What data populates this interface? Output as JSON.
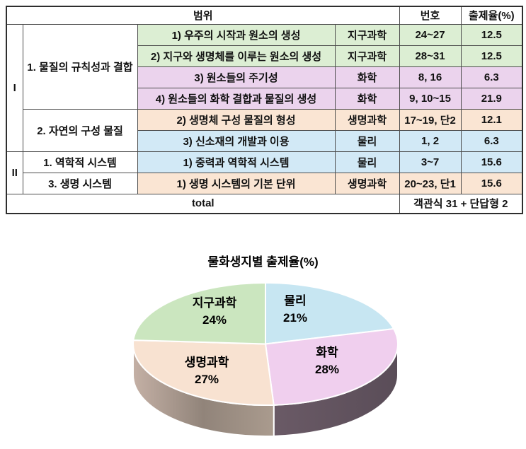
{
  "table": {
    "header": {
      "scope": "범위",
      "number": "번호",
      "rate": "출제율(%)"
    },
    "units": [
      {
        "label": "I"
      },
      {
        "label": "II"
      }
    ],
    "groups": [
      {
        "label": "1. 물질의 규칙성과 결합"
      },
      {
        "label": "2. 자연의 구성 물질"
      },
      {
        "label": "1. 역학적 시스템"
      },
      {
        "label": "3. 생명 시스템"
      }
    ],
    "rows": [
      {
        "topic": "1) 우주의 시작과 원소의 생성",
        "subject": "지구과학",
        "numbers": "24~27",
        "rate": "12.5",
        "color": "#dceed3"
      },
      {
        "topic": "2) 지구와 생명체를 이루는 원소의 생성",
        "subject": "지구과학",
        "numbers": "28~31",
        "rate": "12.5",
        "color": "#dceed3"
      },
      {
        "topic": "3) 원소들의 주기성",
        "subject": "화학",
        "numbers": "8, 16",
        "rate": "6.3",
        "color": "#ebd3ed"
      },
      {
        "topic": "4) 원소들의 화학 결합과 물질의 생성",
        "subject": "화학",
        "numbers": "9, 10~15",
        "rate": "21.9",
        "color": "#ebd3ed"
      },
      {
        "topic": "2) 생명체 구성 물질의 형성",
        "subject": "생명과학",
        "numbers": "17~19, 단2",
        "rate": "12.1",
        "color": "#fae5d3"
      },
      {
        "topic": "3) 신소재의 개발과 이용",
        "subject": "물리",
        "numbers": "1, 2",
        "rate": "6.3",
        "color": "#d2e9f6"
      },
      {
        "topic": "1) 중력과 역학적 시스템",
        "subject": "물리",
        "numbers": "3~7",
        "rate": "15.6",
        "color": "#d2e9f6"
      },
      {
        "topic": "1) 생명 시스템의 기본 단위",
        "subject": "생명과학",
        "numbers": "20~23, 단1",
        "rate": "15.6",
        "color": "#fae5d3"
      }
    ],
    "total": {
      "label": "total",
      "value": "객관식 31 + 단답형 2"
    }
  },
  "chart_data": {
    "type": "pie",
    "style": "3d",
    "title": "물화생지별 출제율(%)",
    "labels": [
      "물리",
      "화학",
      "생명과학",
      "지구과학"
    ],
    "values": [
      21,
      28,
      27,
      24
    ],
    "unit": "%",
    "colors": [
      "#c7e6f2",
      "#f0cfee",
      "#f8e2d1",
      "#cbe6bf"
    ],
    "start_angle_deg": 0,
    "direction": "clockwise",
    "label_style": "name and percent inside slices",
    "legend": "none",
    "rim_gradients": {
      "1": [
        "#6a5a66",
        "#5a4d58"
      ],
      "2": [
        "#c4b0a5",
        "#91847a",
        "#aa9b8e"
      ]
    }
  }
}
